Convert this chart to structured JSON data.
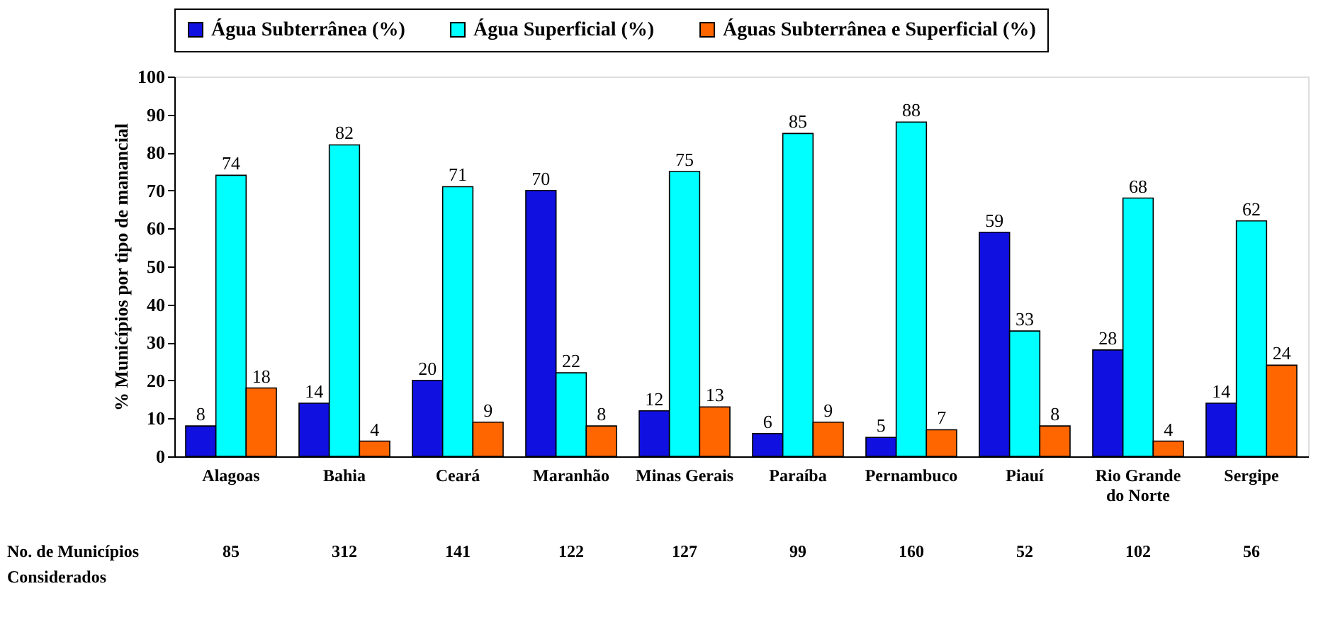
{
  "chart_data": {
    "type": "bar",
    "ylabel": "% Municípios por tipo de manancial",
    "categories": [
      "Alagoas",
      "Bahia",
      "Ceará",
      "Maranhão",
      "Minas Gerais",
      "Paraíba",
      "Pernambuco",
      "Piauí",
      "Rio Grande do Norte",
      "Sergipe"
    ],
    "series": [
      {
        "name": "Água Subterrânea (%)",
        "color": "#1010e0",
        "values": [
          8,
          14,
          20,
          70,
          12,
          6,
          5,
          59,
          28,
          14
        ]
      },
      {
        "name": "Água Superficial (%)",
        "color": "#00ffff",
        "values": [
          74,
          82,
          71,
          22,
          75,
          85,
          88,
          33,
          68,
          62
        ]
      },
      {
        "name": "Águas Subterrânea e Superficial (%)",
        "color": "#ff6600",
        "values": [
          18,
          4,
          9,
          8,
          13,
          9,
          7,
          8,
          4,
          24
        ]
      }
    ],
    "ylim": [
      0,
      100
    ],
    "yticks": [
      0,
      10,
      20,
      30,
      40,
      50,
      60,
      70,
      80,
      90,
      100
    ],
    "data_labels": true,
    "legend": "top",
    "grid": false,
    "annotations": [
      "No. de Municípios Considerados",
      "85",
      "312",
      "141",
      "122",
      "127",
      "99",
      "160",
      "52",
      "102",
      "56"
    ]
  }
}
